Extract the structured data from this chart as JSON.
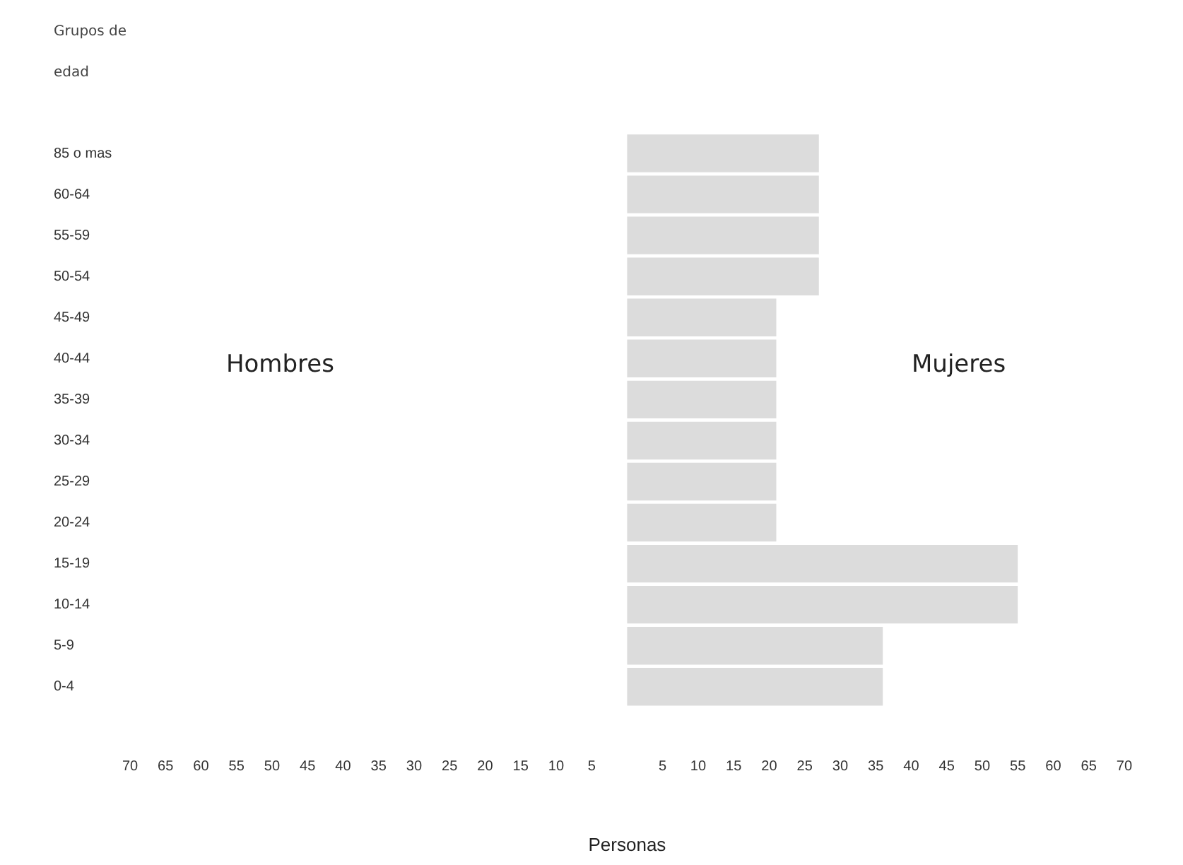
{
  "chart_data": {
    "type": "bar",
    "orientation": "horizontal",
    "ylabel": "Grupos de edad",
    "xlabel": "Personas",
    "annotations": [
      "Hombres",
      "Mujeres"
    ],
    "categories": [
      "85 o mas",
      "60-64",
      "55-59",
      "50-54",
      "45-49",
      "40-44",
      "35-39",
      "30-34",
      "25-29",
      "20-24",
      "15-19",
      "10-14",
      "5-9",
      "0-4"
    ],
    "values": [
      27,
      27,
      27,
      27,
      21,
      21,
      21,
      21,
      21,
      21,
      55,
      55,
      36,
      36
    ],
    "color": "#dcdcdc",
    "xlim": [
      -70,
      70
    ],
    "xticks": [
      {
        "value": -70,
        "label": "70"
      },
      {
        "value": -65,
        "label": "65"
      },
      {
        "value": -60,
        "label": "60"
      },
      {
        "value": -55,
        "label": "55"
      },
      {
        "value": -50,
        "label": "50"
      },
      {
        "value": -45,
        "label": "45"
      },
      {
        "value": -40,
        "label": "40"
      },
      {
        "value": -35,
        "label": "35"
      },
      {
        "value": -30,
        "label": "30"
      },
      {
        "value": -25,
        "label": "25"
      },
      {
        "value": -20,
        "label": "20"
      },
      {
        "value": -15,
        "label": "15"
      },
      {
        "value": -10,
        "label": "10"
      },
      {
        "value": -5,
        "label": "5"
      },
      5,
      10,
      15,
      20,
      25,
      30,
      35,
      40,
      45,
      50,
      55,
      60,
      65,
      70
    ],
    "grid": false,
    "legend": false
  }
}
